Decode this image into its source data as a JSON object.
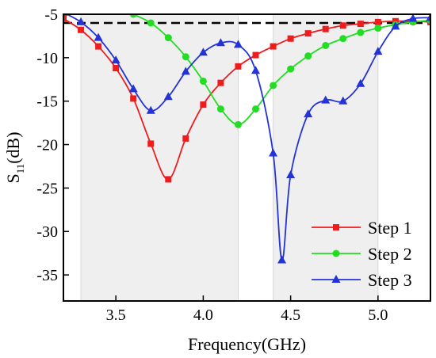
{
  "chart_data": {
    "type": "line",
    "xlabel": "Frequency(GHz)",
    "ylabel_main": "S",
    "ylabel_sub": "11",
    "ylabel_unit": "(dB)",
    "xlim": [
      3.2,
      5.3
    ],
    "ylim": [
      -38,
      -5
    ],
    "x_ticks": [
      3.5,
      4.0,
      4.5,
      5.0
    ],
    "x_tick_labels": [
      "3.5",
      "4.0",
      "4.5",
      "5.0"
    ],
    "y_ticks": [
      -5,
      -10,
      -15,
      -20,
      -25,
      -30,
      -35
    ],
    "y_tick_labels": [
      "-5",
      "-10",
      "-15",
      "-20",
      "-25",
      "-30",
      "-35"
    ],
    "grid": false,
    "reference_line": {
      "y": -6,
      "style": "dashed",
      "color": "#000000"
    },
    "shaded_bands": [
      {
        "from": 3.3,
        "to": 4.2
      },
      {
        "from": 4.4,
        "to": 5.0
      }
    ],
    "legend": {
      "placement": "bottom-right"
    },
    "series": [
      {
        "name": "Step 1",
        "color": "#ee1c1c",
        "marker": "square",
        "points": [
          [
            3.2,
            -5.5
          ],
          [
            3.3,
            -6.8
          ],
          [
            3.4,
            -8.7
          ],
          [
            3.5,
            -11.2
          ],
          [
            3.6,
            -14.7
          ],
          [
            3.7,
            -19.9
          ],
          [
            3.8,
            -24.0
          ],
          [
            3.9,
            -19.3
          ],
          [
            4.0,
            -15.4
          ],
          [
            4.1,
            -12.9
          ],
          [
            4.2,
            -11.0
          ],
          [
            4.3,
            -9.7
          ],
          [
            4.4,
            -8.7
          ],
          [
            4.5,
            -7.8
          ],
          [
            4.6,
            -7.2
          ],
          [
            4.7,
            -6.7
          ],
          [
            4.8,
            -6.3
          ],
          [
            4.9,
            -6.1
          ],
          [
            5.0,
            -5.9
          ],
          [
            5.1,
            -5.8
          ],
          [
            5.2,
            -5.8
          ],
          [
            5.3,
            -5.9
          ]
        ]
      },
      {
        "name": "Step 2",
        "color": "#22dd22",
        "marker": "circle",
        "points": [
          [
            3.6,
            -5.0
          ],
          [
            3.7,
            -6.0
          ],
          [
            3.8,
            -7.7
          ],
          [
            3.9,
            -9.9
          ],
          [
            4.0,
            -12.7
          ],
          [
            4.1,
            -15.9
          ],
          [
            4.2,
            -17.7
          ],
          [
            4.3,
            -15.9
          ],
          [
            4.4,
            -13.2
          ],
          [
            4.5,
            -11.3
          ],
          [
            4.6,
            -9.8
          ],
          [
            4.7,
            -8.6
          ],
          [
            4.8,
            -7.8
          ],
          [
            4.9,
            -7.1
          ],
          [
            5.0,
            -6.6
          ],
          [
            5.1,
            -6.2
          ],
          [
            5.2,
            -5.9
          ],
          [
            5.3,
            -5.7
          ]
        ]
      },
      {
        "name": "Step 3",
        "color": "#2433d6",
        "marker": "triangle",
        "points": [
          [
            3.2,
            -4.8
          ],
          [
            3.3,
            -5.9
          ],
          [
            3.4,
            -7.7
          ],
          [
            3.5,
            -10.3
          ],
          [
            3.6,
            -13.6
          ],
          [
            3.7,
            -16.1
          ],
          [
            3.8,
            -14.5
          ],
          [
            3.9,
            -11.6
          ],
          [
            4.0,
            -9.4
          ],
          [
            4.1,
            -8.3
          ],
          [
            4.2,
            -8.5
          ],
          [
            4.3,
            -11.5
          ],
          [
            4.4,
            -21.0
          ],
          [
            4.45,
            -33.3
          ],
          [
            4.5,
            -23.5
          ],
          [
            4.6,
            -16.5
          ],
          [
            4.7,
            -14.9
          ],
          [
            4.8,
            -15.0
          ],
          [
            4.9,
            -13.0
          ],
          [
            5.0,
            -9.3
          ],
          [
            5.1,
            -6.4
          ],
          [
            5.2,
            -5.5
          ],
          [
            5.3,
            -5.4
          ]
        ]
      }
    ]
  }
}
